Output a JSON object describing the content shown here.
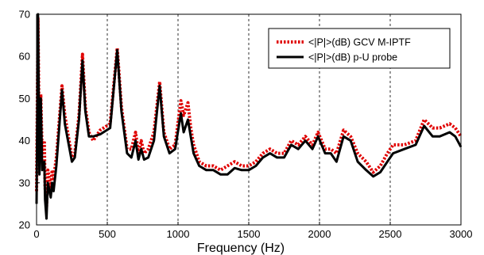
{
  "chart_data": {
    "type": "line",
    "title": "",
    "xlabel": "Frequency (Hz)",
    "ylabel": "",
    "xlim": [
      0,
      3000
    ],
    "ylim": [
      20,
      70
    ],
    "x_ticks": [
      0,
      500,
      1000,
      1500,
      2000,
      2500,
      3000
    ],
    "y_ticks": [
      20,
      30,
      40,
      50,
      60,
      70
    ],
    "grid": "vertical dashed at x ticks",
    "legend_position": "top-right",
    "series": [
      {
        "name": "<|P|>(dB) GCV M-IPTF",
        "color": "#e00000",
        "style": "dotted",
        "points": [
          [
            0,
            28
          ],
          [
            10,
            69
          ],
          [
            20,
            35
          ],
          [
            30,
            51
          ],
          [
            40,
            37
          ],
          [
            55,
            40
          ],
          [
            60,
            29
          ],
          [
            70,
            24
          ],
          [
            80,
            33
          ],
          [
            100,
            29
          ],
          [
            110,
            33
          ],
          [
            120,
            31
          ],
          [
            140,
            36
          ],
          [
            180,
            53
          ],
          [
            200,
            46
          ],
          [
            250,
            36
          ],
          [
            270,
            37
          ],
          [
            300,
            46
          ],
          [
            325,
            60.5
          ],
          [
            345,
            48
          ],
          [
            370,
            42
          ],
          [
            400,
            40
          ],
          [
            450,
            42.5
          ],
          [
            520,
            44
          ],
          [
            570,
            62
          ],
          [
            600,
            48
          ],
          [
            640,
            38
          ],
          [
            670,
            38
          ],
          [
            700,
            42
          ],
          [
            720,
            37
          ],
          [
            740,
            40
          ],
          [
            760,
            37
          ],
          [
            790,
            38
          ],
          [
            830,
            42
          ],
          [
            870,
            54
          ],
          [
            900,
            42
          ],
          [
            940,
            38
          ],
          [
            980,
            39
          ],
          [
            1020,
            49.5
          ],
          [
            1040,
            46
          ],
          [
            1070,
            49
          ],
          [
            1090,
            43
          ],
          [
            1110,
            39
          ],
          [
            1150,
            35
          ],
          [
            1200,
            34
          ],
          [
            1250,
            34
          ],
          [
            1300,
            33
          ],
          [
            1350,
            34
          ],
          [
            1400,
            35
          ],
          [
            1450,
            34
          ],
          [
            1500,
            34
          ],
          [
            1550,
            35
          ],
          [
            1600,
            37
          ],
          [
            1650,
            38
          ],
          [
            1700,
            37
          ],
          [
            1750,
            37
          ],
          [
            1800,
            40
          ],
          [
            1850,
            39
          ],
          [
            1900,
            41
          ],
          [
            1950,
            39
          ],
          [
            1990,
            42
          ],
          [
            2040,
            38
          ],
          [
            2080,
            38
          ],
          [
            2120,
            37
          ],
          [
            2170,
            42.5
          ],
          [
            2220,
            41
          ],
          [
            2270,
            37
          ],
          [
            2330,
            35
          ],
          [
            2380,
            32.5
          ],
          [
            2430,
            34
          ],
          [
            2480,
            37
          ],
          [
            2520,
            39
          ],
          [
            2600,
            39
          ],
          [
            2680,
            40
          ],
          [
            2740,
            45
          ],
          [
            2800,
            43
          ],
          [
            2850,
            43
          ],
          [
            2920,
            44
          ],
          [
            2960,
            43
          ],
          [
            3000,
            41
          ]
        ]
      },
      {
        "name": "<|P|>(dB) p-U probe",
        "color": "#000000",
        "style": "solid",
        "points": [
          [
            0,
            25
          ],
          [
            10,
            70
          ],
          [
            20,
            32
          ],
          [
            30,
            50
          ],
          [
            40,
            33
          ],
          [
            55,
            35
          ],
          [
            60,
            26
          ],
          [
            70,
            21.5
          ],
          [
            80,
            30
          ],
          [
            100,
            26.5
          ],
          [
            110,
            30
          ],
          [
            120,
            28
          ],
          [
            140,
            34
          ],
          [
            180,
            52
          ],
          [
            200,
            44
          ],
          [
            250,
            35
          ],
          [
            270,
            36
          ],
          [
            300,
            45
          ],
          [
            325,
            59
          ],
          [
            345,
            47
          ],
          [
            370,
            41
          ],
          [
            400,
            41
          ],
          [
            450,
            41.5
          ],
          [
            520,
            43
          ],
          [
            570,
            61.5
          ],
          [
            600,
            47
          ],
          [
            640,
            37
          ],
          [
            670,
            36
          ],
          [
            700,
            40
          ],
          [
            720,
            35.5
          ],
          [
            740,
            38
          ],
          [
            760,
            35.5
          ],
          [
            790,
            36
          ],
          [
            830,
            40
          ],
          [
            870,
            53
          ],
          [
            900,
            41
          ],
          [
            940,
            37
          ],
          [
            980,
            38
          ],
          [
            1020,
            46.5
          ],
          [
            1040,
            42
          ],
          [
            1070,
            45
          ],
          [
            1090,
            41
          ],
          [
            1110,
            37
          ],
          [
            1150,
            34
          ],
          [
            1200,
            33
          ],
          [
            1250,
            33
          ],
          [
            1300,
            32
          ],
          [
            1350,
            32
          ],
          [
            1400,
            33.5
          ],
          [
            1450,
            33
          ],
          [
            1500,
            33
          ],
          [
            1550,
            34
          ],
          [
            1600,
            36
          ],
          [
            1650,
            37
          ],
          [
            1700,
            36
          ],
          [
            1750,
            36
          ],
          [
            1800,
            39
          ],
          [
            1850,
            38
          ],
          [
            1900,
            40
          ],
          [
            1950,
            38
          ],
          [
            1990,
            41
          ],
          [
            2040,
            37
          ],
          [
            2080,
            37
          ],
          [
            2120,
            35
          ],
          [
            2170,
            41
          ],
          [
            2220,
            40
          ],
          [
            2270,
            35
          ],
          [
            2330,
            33
          ],
          [
            2380,
            31.5
          ],
          [
            2430,
            32.5
          ],
          [
            2480,
            35
          ],
          [
            2520,
            37
          ],
          [
            2600,
            38
          ],
          [
            2680,
            39
          ],
          [
            2740,
            43.5
          ],
          [
            2800,
            41
          ],
          [
            2850,
            41
          ],
          [
            2920,
            42
          ],
          [
            2960,
            41
          ],
          [
            3000,
            38.5
          ]
        ]
      }
    ]
  }
}
